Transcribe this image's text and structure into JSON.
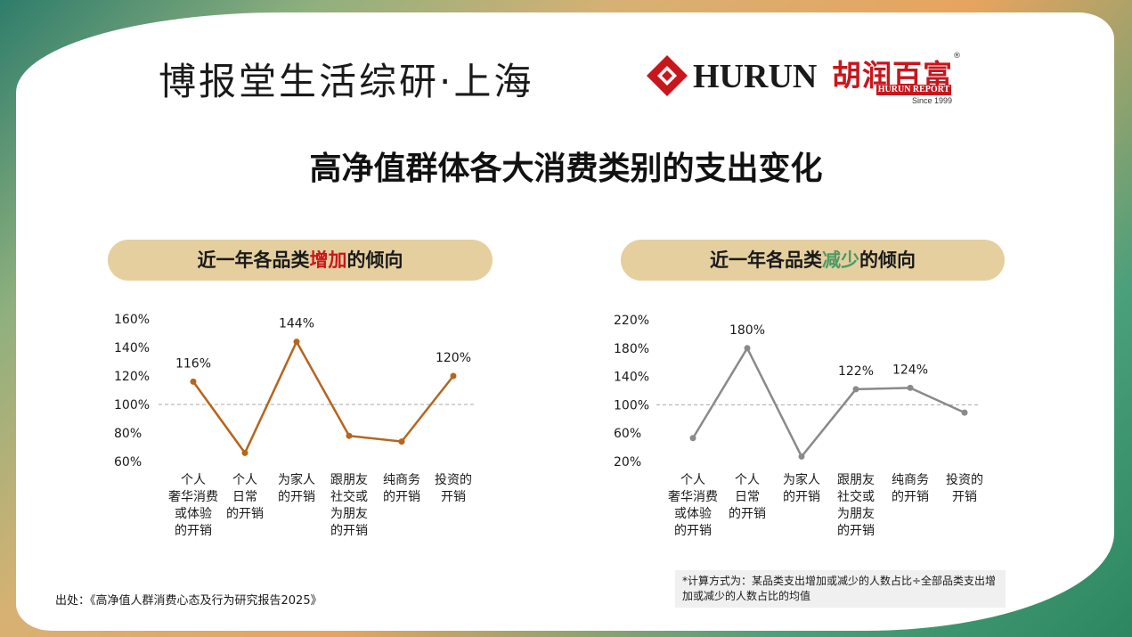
{
  "header": {
    "org_title": "博报堂生活综研·上海",
    "hurun_brand": "HURUN",
    "hurun_report_cn": "胡润百富",
    "hurun_report_en": "HURUN REPORT",
    "hurun_since": "Since 1999",
    "registered_mark": "®"
  },
  "main_title": "高净值群体各大消费类别的支出变化",
  "left_panel": {
    "title_before": "近一年各品类",
    "title_highlight": "增加",
    "title_after": "的倾向"
  },
  "right_panel": {
    "title_before": "近一年各品类",
    "title_highlight": "减少",
    "title_after": "的倾向"
  },
  "colors": {
    "increase_line": "#b5651d",
    "decrease_line": "#8a8a8a",
    "pill_bg": "#e6cf9f",
    "highlight_red": "#c8161d",
    "highlight_green": "#4b9a63"
  },
  "chart_data": [
    {
      "type": "line",
      "categories": [
        [
          "个人",
          "奢华消费",
          "或体验",
          "的开销"
        ],
        [
          "个人",
          "日常",
          "的开销"
        ],
        [
          "为家人",
          "的开销"
        ],
        [
          "跟朋友",
          "社交或",
          "为朋友",
          "的开销"
        ],
        [
          "纯商务",
          "的开销"
        ],
        [
          "投资的",
          "开销"
        ]
      ],
      "values": [
        116,
        66,
        144,
        78,
        74,
        120
      ],
      "data_labels": [
        "116%",
        "",
        "144%",
        "",
        "",
        "120%"
      ],
      "yticks": [
        "160%",
        "140%",
        "120%",
        "100%",
        "80%",
        "60%"
      ],
      "ylim": [
        60,
        160
      ],
      "reference_line": 100,
      "xlabel": "",
      "ylabel": ""
    },
    {
      "type": "line",
      "categories": [
        [
          "个人",
          "奢华消费",
          "或体验",
          "的开销"
        ],
        [
          "个人",
          "日常",
          "的开销"
        ],
        [
          "为家人",
          "的开销"
        ],
        [
          "跟朋友",
          "社交或",
          "为朋友",
          "的开销"
        ],
        [
          "纯商务",
          "的开销"
        ],
        [
          "投资的",
          "开销"
        ]
      ],
      "values": [
        53,
        180,
        27,
        122,
        124,
        89
      ],
      "data_labels": [
        "",
        "180%",
        "",
        "122%",
        "124%",
        ""
      ],
      "yticks": [
        "220%",
        "180%",
        "140%",
        "100%",
        "60%",
        "20%"
      ],
      "ytick_values": [
        220,
        180,
        140,
        100,
        60,
        20
      ],
      "ylim": [
        20,
        220
      ],
      "reference_line": 100,
      "xlabel": "",
      "ylabel": ""
    }
  ],
  "source": "出处：《高净值人群消费心态及行为研究报告2025》",
  "note": "*计算方式为：某品类支出增加或减少的人数占比÷全部品类支出增加或减少的人数占比的均值"
}
